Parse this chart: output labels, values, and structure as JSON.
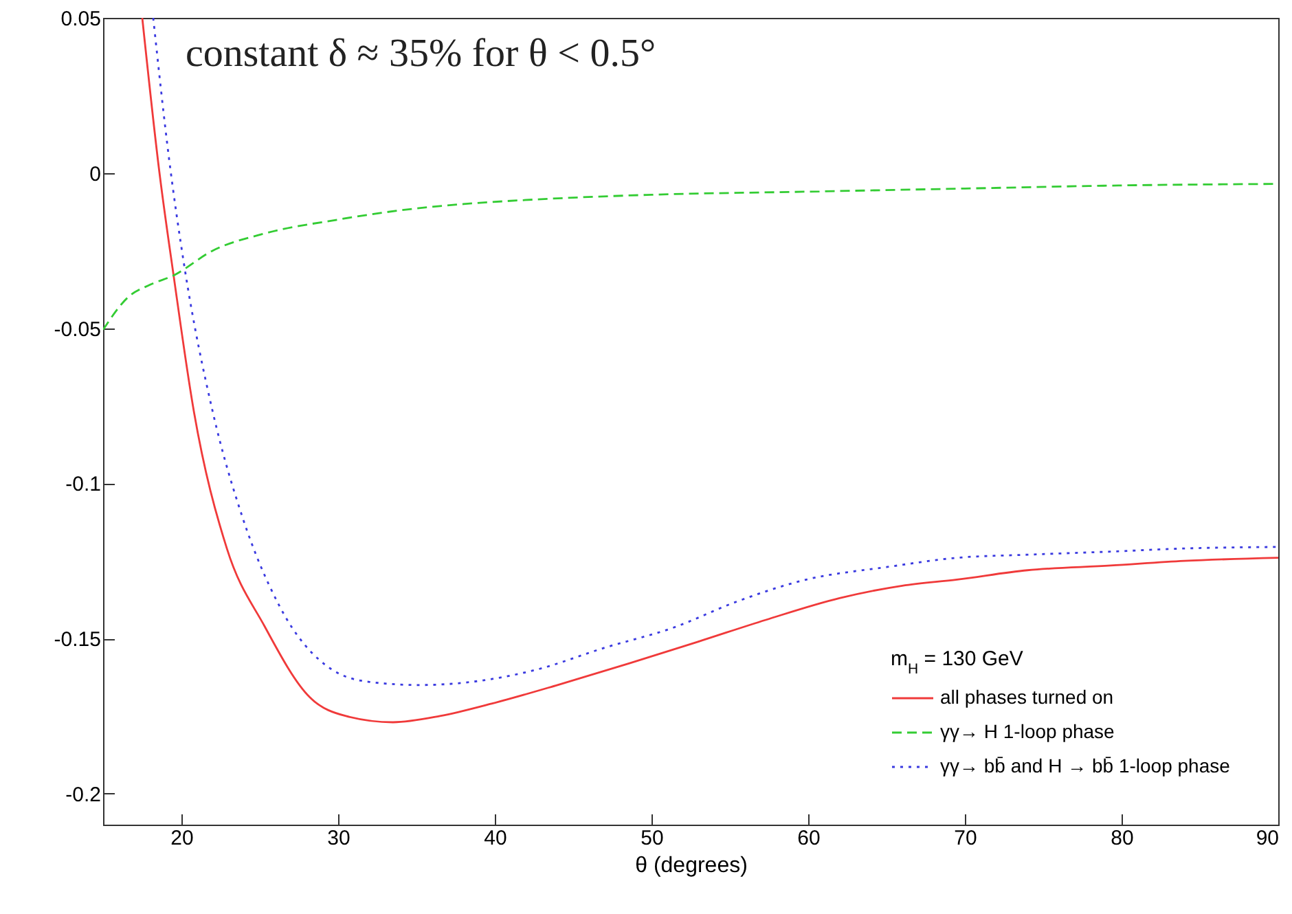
{
  "chart_data": {
    "type": "line",
    "xlabel": "θ (degrees)",
    "legend_title": "m$_{H}$ = 130 GeV",
    "legend": "bottom right",
    "grid": false,
    "annotations": [
      "constant δ ≈ 35% for θ < 0.5°"
    ],
    "xlim": [
      15,
      90
    ],
    "xticks": [
      20,
      30,
      40,
      50,
      60,
      70,
      80,
      90
    ],
    "ylim": [
      -0.21,
      0.05
    ],
    "yticks": [
      -0.2,
      -0.15,
      -0.1,
      -0.05,
      0,
      0.05
    ],
    "series": [
      {
        "name": "all phases turned on",
        "color": "#f03a3a",
        "line_style": "solid",
        "x": [
          17.5,
          18.6,
          19.5,
          20.8,
          22.9,
          25.3,
          28.2,
          30.5,
          33.5,
          36.5,
          39.8,
          44,
          48.6,
          53,
          57.3,
          62,
          66,
          69.5,
          74,
          79.3,
          84,
          90
        ],
        "values": [
          0.05,
          0.0,
          -0.033,
          -0.077,
          -0.121,
          -0.146,
          -0.169,
          -0.175,
          -0.177,
          -0.175,
          -0.171,
          -0.165,
          -0.158,
          -0.151,
          -0.144,
          -0.137,
          -0.133,
          -0.131,
          -0.128,
          -0.1265,
          -0.125,
          -0.124
        ]
      },
      {
        "name": "γγ→ H 1-loop phase",
        "color": "#33cc33",
        "line_style": "dashed",
        "x": [
          15,
          16.6,
          18,
          19.5,
          22,
          25.3,
          30,
          34,
          38,
          42.7,
          50,
          60,
          70,
          80,
          90
        ],
        "values": [
          -0.0505,
          -0.04,
          -0.036,
          -0.033,
          -0.025,
          -0.0195,
          -0.015,
          -0.012,
          -0.01,
          -0.0085,
          -0.007,
          -0.006,
          -0.005,
          -0.004,
          -0.0035
        ]
      },
      {
        "name": "γγ→ bb̄ and H → bb̄ 1-loop phase",
        "color": "#3a3ae0",
        "line_style": "dotted",
        "x": [
          18.2,
          19.2,
          20.2,
          22,
          23.9,
          26.2,
          29.6,
          32,
          35.2,
          38.5,
          42.7,
          47,
          51.4,
          55.5,
          59.9,
          65,
          69.5,
          74,
          79.3,
          84,
          90
        ],
        "values": [
          0.05,
          0.005,
          -0.0305,
          -0.077,
          -0.111,
          -0.139,
          -0.16,
          -0.164,
          -0.165,
          -0.164,
          -0.16,
          -0.153,
          -0.1465,
          -0.138,
          -0.131,
          -0.127,
          -0.124,
          -0.123,
          -0.122,
          -0.121,
          -0.1205
        ]
      }
    ]
  }
}
